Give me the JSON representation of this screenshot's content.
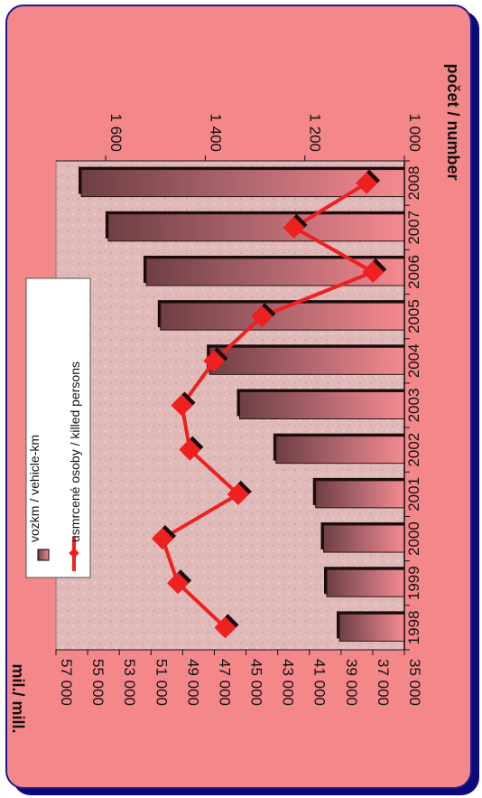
{
  "chart_data": {
    "type": "bar+line",
    "categories": [
      "1998",
      "1999",
      "2000",
      "2001",
      "2002",
      "2003",
      "2004",
      "2005",
      "2006",
      "2007",
      "2008"
    ],
    "series": [
      {
        "name": "vozkm / vehicle-km",
        "type": "bar",
        "axis": "left",
        "values": [
          39100,
          39900,
          40100,
          40600,
          43100,
          45400,
          47300,
          50400,
          51300,
          53700,
          55400
        ]
      },
      {
        "name": "usmrcené osoby / killed persons",
        "type": "line",
        "axis": "right",
        "values": [
          1360,
          1455,
          1486,
          1334,
          1431,
          1447,
          1382,
          1286,
          1063,
          1222,
          1076
        ]
      }
    ],
    "ylabel_left": "mil./ mill.",
    "ylabel_right": "počet / number",
    "ylim_left": [
      35000,
      57000
    ],
    "yticks_left": [
      "35 000",
      "37 000",
      "39 000",
      "41 000",
      "43 000",
      "45 000",
      "47 000",
      "49 000",
      "51 000",
      "53 000",
      "55 000",
      "57 000"
    ],
    "ylim_right": [
      1000,
      1700
    ],
    "yticks_right": [
      "1 000",
      "1 200",
      "1 400",
      "1 600"
    ],
    "orientation": "rotated-90-clockwise",
    "grid": false,
    "legend_position": "top-right",
    "colors": {
      "bar_dark": "#6e3f44",
      "bar_light": "#f48a90",
      "line": "#ee2020",
      "marker": "#ee2020",
      "background": "#f4878a",
      "plot": "#e0b8b8",
      "frame": "#1b1b8c"
    }
  }
}
